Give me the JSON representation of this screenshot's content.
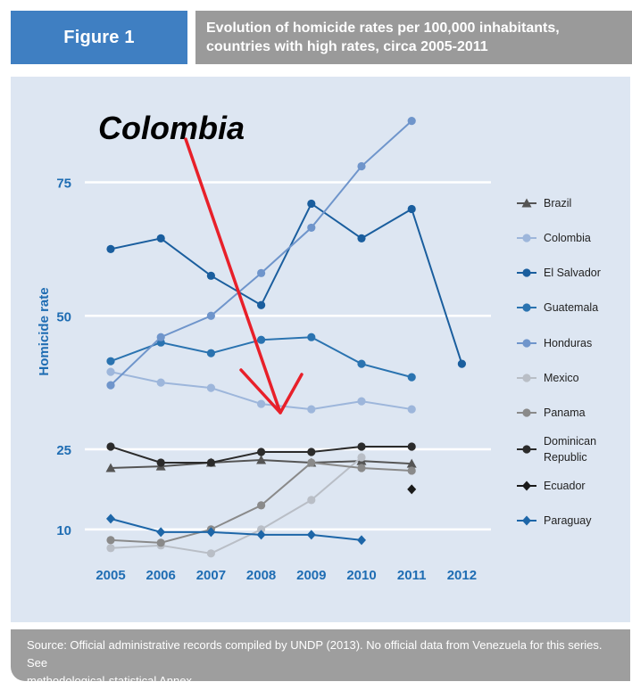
{
  "header": {
    "figure_label": "Figure 1",
    "title_line1": "Evolution of homicide rates per 100,000 inhabitants,",
    "title_line2": "countries with high rates, circa 2005-2011"
  },
  "annotation": {
    "text": "Colombia",
    "color": "#e8202a"
  },
  "source": {
    "line1": "Source: Official administrative records compiled by UNDP (2013). No official data from Venezuela for this series. See",
    "line2": "methodological-statistical Annex."
  },
  "chart_data": {
    "type": "line",
    "title": "",
    "xlabel": "",
    "ylabel": "Homicide rate",
    "categories": [
      "2005",
      "2006",
      "2007",
      "2008",
      "2009",
      "2010",
      "2011",
      "2012"
    ],
    "yticks": [
      10,
      25,
      50,
      75
    ],
    "grid": true,
    "legend_position": "right",
    "series": [
      {
        "name": "Brazil",
        "marker": "triangle",
        "color": "#555555",
        "values": [
          21.5,
          21.8,
          22.5,
          23,
          22.5,
          22.8,
          22.3,
          null
        ]
      },
      {
        "name": "Colombia",
        "marker": "circle",
        "color": "#9db6db",
        "values": [
          39.5,
          37.5,
          36.5,
          33.5,
          32.5,
          34,
          32.5,
          null
        ]
      },
      {
        "name": "El Salvador",
        "marker": "circle",
        "color": "#1a5e9e",
        "values": [
          62.5,
          64.5,
          57.5,
          52,
          71,
          64.5,
          70,
          41
        ]
      },
      {
        "name": "Guatemala",
        "marker": "circle",
        "color": "#2a73b0",
        "values": [
          41.5,
          45,
          43,
          45.5,
          46,
          41,
          38.5,
          null
        ]
      },
      {
        "name": "Honduras",
        "marker": "circle",
        "color": "#6f95cb",
        "values": [
          37,
          46,
          50,
          58,
          66.5,
          78,
          86.5,
          null
        ]
      },
      {
        "name": "Mexico",
        "marker": "circle",
        "color": "#b9bec6",
        "values": [
          6.5,
          7,
          5.5,
          10,
          15.5,
          23.5,
          null,
          null
        ]
      },
      {
        "name": "Panama",
        "marker": "circle",
        "color": "#8a8a8a",
        "values": [
          8,
          7.5,
          10,
          14.5,
          22.5,
          21.5,
          21,
          null
        ]
      },
      {
        "name": "Dominican\nRepublic",
        "marker": "circle",
        "color": "#2b2b2b",
        "values": [
          25.5,
          22.5,
          22.5,
          24.5,
          24.5,
          25.5,
          25.5,
          null
        ]
      },
      {
        "name": "Ecuador",
        "marker": "diamond",
        "color": "#1a1a1a",
        "values": [
          null,
          null,
          null,
          null,
          null,
          null,
          17.5,
          null
        ]
      },
      {
        "name": "Paraguay",
        "marker": "diamond",
        "color": "#1d66a8",
        "values": [
          12,
          9.5,
          9.5,
          9,
          9,
          8,
          null,
          null
        ]
      }
    ]
  }
}
